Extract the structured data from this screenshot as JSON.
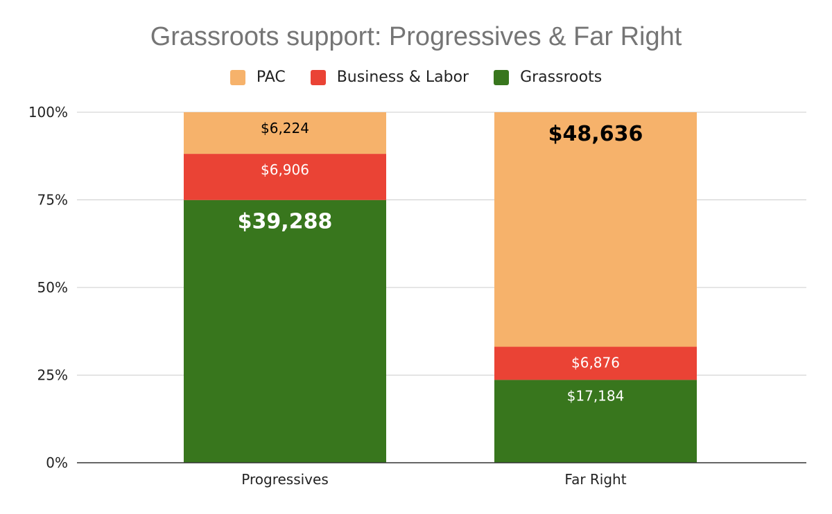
{
  "chart_data": {
    "type": "bar",
    "stacked": "percent",
    "title": "Grassroots support: Progressives & Far Right",
    "categories": [
      "Progressives",
      "Far Right"
    ],
    "series": [
      {
        "name": "Grassroots",
        "color": "#38761d",
        "values": [
          39288,
          17184
        ],
        "labels": [
          "$39,288",
          "$17,184"
        ]
      },
      {
        "name": "Business & Labor",
        "color": "#ea4335",
        "values": [
          6906,
          6876
        ],
        "labels": [
          "$6,906",
          "$6,876"
        ]
      },
      {
        "name": "PAC",
        "color": "#f6b26b",
        "values": [
          6224,
          48636
        ],
        "labels": [
          "$6,224",
          "$48,636"
        ]
      }
    ],
    "legend_order": [
      "PAC",
      "Business & Labor",
      "Grassroots"
    ],
    "legend_position": "top",
    "y_ticks": [
      "0%",
      "25%",
      "50%",
      "75%",
      "100%"
    ],
    "ylim": [
      0,
      100
    ],
    "grid": true,
    "xlabel": "",
    "ylabel": ""
  }
}
